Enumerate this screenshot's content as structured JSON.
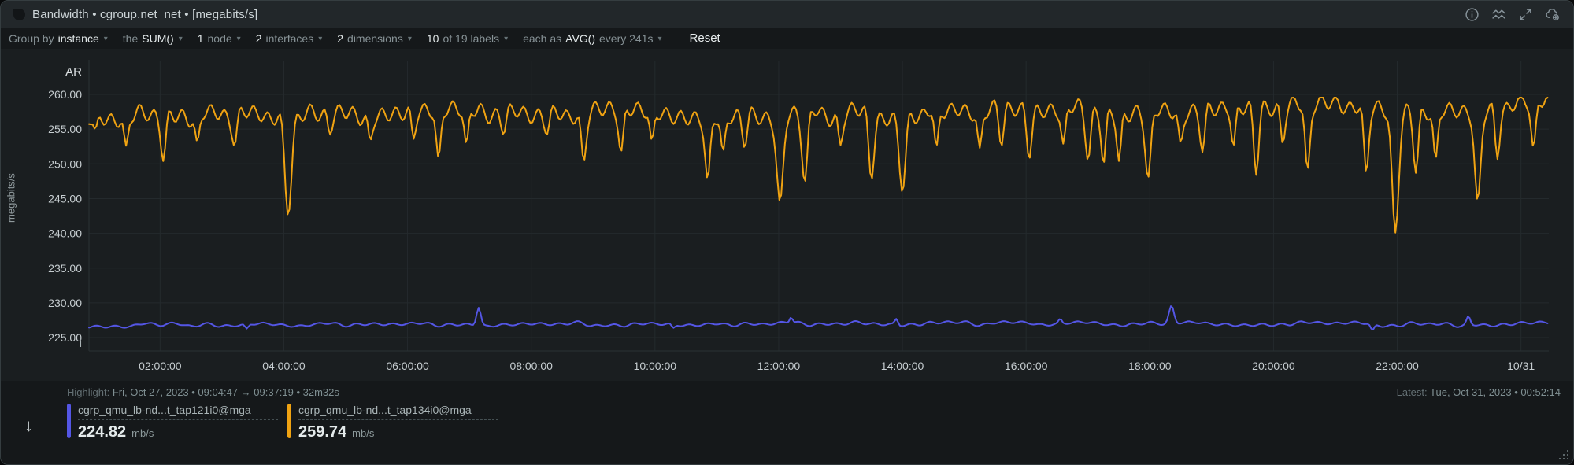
{
  "header": {
    "title": "Bandwidth • cgroup.net_net • [megabits/s]",
    "icons": [
      "info",
      "chart-line-type",
      "fullscreen",
      "add-to-dashboard"
    ]
  },
  "toolbar": {
    "items": [
      {
        "id": "group-by",
        "parts": [
          [
            "Group by",
            "m"
          ],
          [
            "instance",
            "b"
          ]
        ]
      },
      {
        "id": "aggregate",
        "parts": [
          [
            "the",
            "m"
          ],
          [
            "SUM()",
            "b"
          ]
        ]
      },
      {
        "id": "nodes",
        "parts": [
          [
            "1",
            "b"
          ],
          [
            "node",
            "m"
          ]
        ]
      },
      {
        "id": "interfaces",
        "parts": [
          [
            "2",
            "b"
          ],
          [
            "interfaces",
            "m"
          ]
        ]
      },
      {
        "id": "dimensions",
        "parts": [
          [
            "2",
            "b"
          ],
          [
            "dimensions",
            "m"
          ]
        ]
      },
      {
        "id": "labels",
        "parts": [
          [
            "10",
            "b"
          ],
          [
            "of 19 labels",
            "m"
          ]
        ]
      },
      {
        "id": "each-as",
        "parts": [
          [
            "each as",
            "m"
          ],
          [
            "AVG()",
            "b"
          ],
          [
            "every 241s",
            "m"
          ]
        ]
      }
    ],
    "reset_label": "Reset"
  },
  "chart_data": {
    "type": "line",
    "title": "Bandwidth • cgroup.net_net",
    "ylabel": "megabits/s",
    "x_range_hours": [
      0.85,
      24.45
    ],
    "ylim": [
      222.5,
      262.5
    ],
    "grid": true,
    "legend_position": "bottom",
    "corner_top_label": "AR",
    "corner_bottom_label": "i",
    "grid_color": "#242a2d",
    "axis_text_color": "#c6cdd0",
    "yticks": [
      {
        "v": 260,
        "label": "260.00"
      },
      {
        "v": 255,
        "label": "255.00"
      },
      {
        "v": 250,
        "label": "250.00"
      },
      {
        "v": 245,
        "label": "245.00"
      },
      {
        "v": 240,
        "label": "240.00"
      },
      {
        "v": 235,
        "label": "235.00"
      },
      {
        "v": 230,
        "label": "230.00"
      },
      {
        "v": 225,
        "label": "225.00"
      }
    ],
    "xticks": [
      {
        "t": 2,
        "label": "02:00:00"
      },
      {
        "t": 4,
        "label": "04:00:00"
      },
      {
        "t": 6,
        "label": "06:00:00"
      },
      {
        "t": 8,
        "label": "08:00:00"
      },
      {
        "t": 10,
        "label": "10:00:00"
      },
      {
        "t": 12,
        "label": "12:00:00"
      },
      {
        "t": 14,
        "label": "14:00:00"
      },
      {
        "t": 16,
        "label": "16:00:00"
      },
      {
        "t": 18,
        "label": "18:00:00"
      },
      {
        "t": 20,
        "label": "20:00:00"
      },
      {
        "t": 22,
        "label": "22:00:00"
      },
      {
        "t": 24,
        "label": "10/31"
      }
    ],
    "series": [
      {
        "name": "cgrp_qmu_lb-nd...t_tap134i0@mga",
        "color": "#f0a312",
        "latest_value": 259.74,
        "anchors": [
          [
            0.85,
            256.6
          ],
          [
            3,
            257.0
          ],
          [
            6,
            257.2
          ],
          [
            9,
            257.2
          ],
          [
            12,
            257.1
          ],
          [
            15,
            257.3
          ],
          [
            16.3,
            258.0
          ],
          [
            17.6,
            257.6
          ],
          [
            19,
            257.5
          ],
          [
            20.8,
            258.2
          ],
          [
            21.8,
            258.3
          ],
          [
            23,
            257.9
          ],
          [
            24.45,
            258.9
          ]
        ],
        "wiggle_amp": 1.0,
        "wiggle_freq": 27.3,
        "noise_amp": 0.85,
        "noise_period": 0.21,
        "clamp": [
          255.2,
          259.55
        ],
        "seed": 7,
        "events": [
          [
            0.95,
            255.0,
            0.05
          ],
          [
            1.45,
            252.6,
            0.05
          ],
          [
            2.05,
            250.4,
            0.055
          ],
          [
            2.6,
            253.2,
            0.05
          ],
          [
            3.2,
            252.6,
            0.05
          ],
          [
            4.07,
            242.5,
            0.075
          ],
          [
            4.75,
            254.2,
            0.05
          ],
          [
            5.4,
            253.4,
            0.05
          ],
          [
            6.1,
            253.6,
            0.05
          ],
          [
            6.5,
            250.9,
            0.055
          ],
          [
            6.95,
            252.9,
            0.05
          ],
          [
            7.55,
            254.2,
            0.05
          ],
          [
            8.25,
            254.2,
            0.05
          ],
          [
            8.85,
            250.4,
            0.055
          ],
          [
            9.45,
            251.7,
            0.055
          ],
          [
            9.95,
            253.4,
            0.05
          ],
          [
            10.85,
            247.8,
            0.06
          ],
          [
            11.1,
            251.8,
            0.05
          ],
          [
            11.45,
            252.3,
            0.05
          ],
          [
            12.02,
            244.6,
            0.075
          ],
          [
            12.42,
            247.3,
            0.06
          ],
          [
            13.0,
            252.7,
            0.05
          ],
          [
            13.5,
            247.7,
            0.06
          ],
          [
            14.0,
            245.9,
            0.07
          ],
          [
            14.55,
            252.5,
            0.05
          ],
          [
            15.25,
            252.3,
            0.05
          ],
          [
            15.6,
            252.5,
            0.05
          ],
          [
            16.05,
            250.7,
            0.055
          ],
          [
            16.6,
            252.9,
            0.05
          ],
          [
            17.0,
            250.5,
            0.055
          ],
          [
            17.25,
            250.0,
            0.05
          ],
          [
            17.5,
            250.4,
            0.05
          ],
          [
            17.97,
            247.9,
            0.065
          ],
          [
            18.5,
            253.0,
            0.05
          ],
          [
            18.85,
            251.7,
            0.055
          ],
          [
            19.35,
            252.5,
            0.05
          ],
          [
            19.72,
            248.4,
            0.055
          ],
          [
            20.15,
            252.9,
            0.05
          ],
          [
            20.55,
            249.1,
            0.055
          ],
          [
            21.5,
            248.7,
            0.055
          ],
          [
            21.97,
            240.1,
            0.075
          ],
          [
            22.3,
            248.7,
            0.055
          ],
          [
            22.62,
            250.7,
            0.05
          ],
          [
            23.3,
            244.7,
            0.07
          ],
          [
            23.62,
            250.7,
            0.05
          ],
          [
            24.2,
            252.4,
            0.055
          ]
        ]
      },
      {
        "name": "cgrp_qmu_lb-nd...t_tap121i0@mga",
        "color": "#5456e5",
        "latest_value": 224.82,
        "anchors": [
          [
            0.85,
            226.85
          ],
          [
            8,
            226.9
          ],
          [
            12,
            227.05
          ],
          [
            16,
            226.95
          ],
          [
            20,
            227.0
          ],
          [
            24.45,
            226.9
          ]
        ],
        "wiggle_amp": 0.16,
        "wiggle_freq": 21.0,
        "noise_amp": 0.3,
        "noise_period": 0.25,
        "clamp": [
          226.3,
          227.6
        ],
        "seed": 31,
        "events": [
          [
            3.4,
            226.3,
            0.04
          ],
          [
            7.15,
            229.3,
            0.05
          ],
          [
            10.3,
            226.4,
            0.04
          ],
          [
            12.2,
            227.9,
            0.035
          ],
          [
            13.9,
            227.7,
            0.035
          ],
          [
            16.55,
            227.7,
            0.035
          ],
          [
            18.35,
            229.6,
            0.055
          ],
          [
            21.6,
            226.1,
            0.045
          ],
          [
            23.15,
            228.1,
            0.04
          ]
        ]
      }
    ]
  },
  "footer": {
    "highlight_label": "Highlight:",
    "highlight_value": "Fri, Oct 27, 2023 • 09:04:47  →  09:37:19  • 32m32s",
    "latest_label": "Latest:",
    "latest_value": "Tue, Oct 31, 2023 • 00:52:14"
  },
  "legend": {
    "items": [
      {
        "name": "cgrp_qmu_lb-nd...t_tap121i0@mga",
        "value": "224.82",
        "unit": "mb/s",
        "color": "#5456e5"
      },
      {
        "name": "cgrp_qmu_lb-nd...t_tap134i0@mga",
        "value": "259.74",
        "unit": "mb/s",
        "color": "#f0a312"
      }
    ]
  },
  "colors": {
    "card_bg": "#1a1e20",
    "header_bg": "#22272a",
    "bar_bg": "#15181a",
    "orange": "#f0a312",
    "blue": "#5456e5"
  }
}
